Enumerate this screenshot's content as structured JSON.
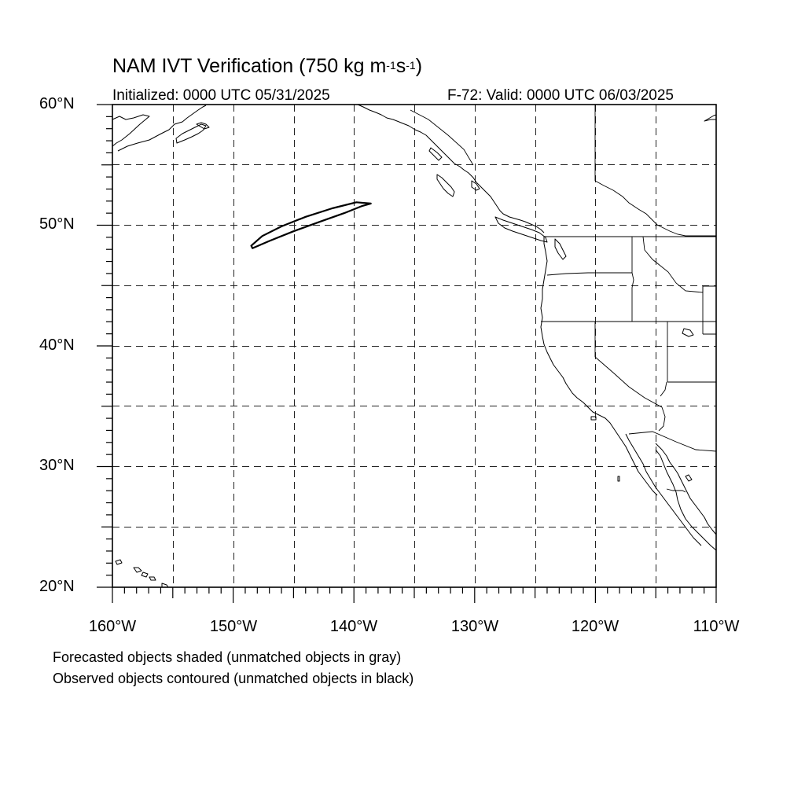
{
  "title": {
    "prefix": "NAM IVT Verification (750 kg m",
    "exp1": "-1",
    "mid": "s",
    "exp2": "-1",
    "suffix": ")"
  },
  "subtitle_left": "Initialized: 0000 UTC 05/31/2025",
  "subtitle_right": "F-72: Valid: 0000 UTC 06/03/2025",
  "axes": {
    "lat_labels": [
      "60°N",
      "50°N",
      "40°N",
      "30°N",
      "20°N"
    ],
    "lon_labels": [
      "160°W",
      "150°W",
      "140°W",
      "130°W",
      "120°W",
      "110°W"
    ],
    "lat_range": [
      20,
      60
    ],
    "lon_range": [
      -160,
      -110
    ],
    "grid": "dashed every 5°"
  },
  "notes": [
    "Forecasted objects shaded (unmatched objects in gray)",
    "Observed objects contoured (unmatched objects in black)"
  ],
  "map_features": {
    "observed_object": {
      "matched": false,
      "color": "#000000",
      "outline_lonlat": [
        [
          -148.5,
          48.3
        ],
        [
          -147.6,
          49.1
        ],
        [
          -146.0,
          49.9
        ],
        [
          -144.0,
          50.7
        ],
        [
          -141.8,
          51.4
        ],
        [
          -139.8,
          51.9
        ],
        [
          -138.6,
          51.8
        ],
        [
          -139.3,
          51.6
        ],
        [
          -140.8,
          51.0
        ],
        [
          -142.8,
          50.3
        ],
        [
          -145.0,
          49.5
        ],
        [
          -147.0,
          48.7
        ],
        [
          -148.4,
          48.1
        ]
      ]
    }
  }
}
